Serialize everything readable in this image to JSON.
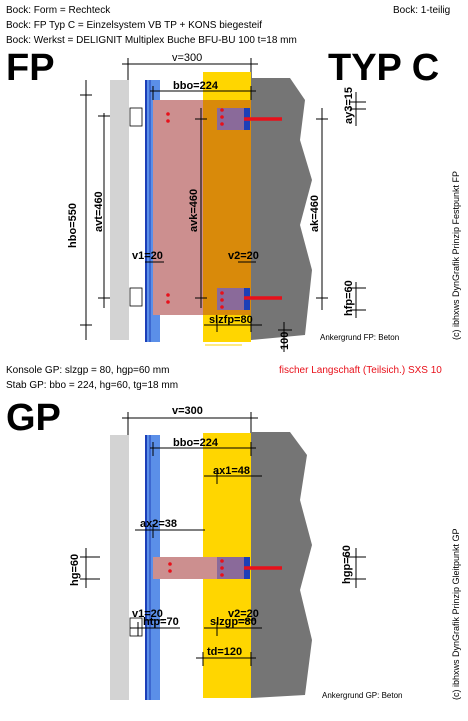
{
  "header": {
    "line1": "Bock: Form = Rechteck",
    "line2": "Bock: FP Typ C = Einzelsystem VB TP + KONS biegesteif",
    "line3": "Bock: Werkst = DELIGNIT Multiplex Buche BFU-BU 100 t=18 mm",
    "right": "Bock: 1-teilig"
  },
  "fp": {
    "label": "FP",
    "type_label": "TYP C",
    "dims": {
      "v": "v=300",
      "bbo": "bbo=224",
      "ay3": "ay3=15",
      "hbo": "hbo=550",
      "avt": "avt=460",
      "avk": "avk=460",
      "ak": "ak=460",
      "v1": "v1=20",
      "v2": "v2=20",
      "hfp": "hfp=60",
      "slzfp": "slzfp=80",
      "hundred": "100"
    },
    "anchor_base": "Ankergrund FP: Beton",
    "side_note": "(c) ibhxws DynGrafik Prinzip Festpunkt FP"
  },
  "middle": {
    "line1": "Konsole GP: slzgp = 80, hgp=60 mm",
    "line2": "Stab GP: bbo = 224, hg=60, tg=18 mm",
    "anchor_name": "fischer Langschaft (Teilsich.) SXS 10"
  },
  "gp": {
    "label": "GP",
    "dims": {
      "v": "v=300",
      "bbo": "bbo=224",
      "ax1": "ax1=48",
      "ax2": "ax2=38",
      "hg": "hg=60",
      "hgp": "hgp=60",
      "v1": "v1=20",
      "v2": "v2=20",
      "htp": "htp=70",
      "slzgp": "slzgp=80",
      "td": "td=120"
    },
    "anchor_base": "Ankergrund GP: Beton",
    "side_note": "(c) ibhxws DynGrafik Prinzip Gleitpunkt GP"
  },
  "colors": {
    "grey_light": "#d3d3d3",
    "blue": "#5b8fe8",
    "blue_dark": "#1c3fb8",
    "yellow": "#ffd600",
    "orange": "#d98a0a",
    "pink": "#cc8f8f",
    "purple": "#8a6a9a",
    "wall": "#757575",
    "red": "#e8101a"
  }
}
